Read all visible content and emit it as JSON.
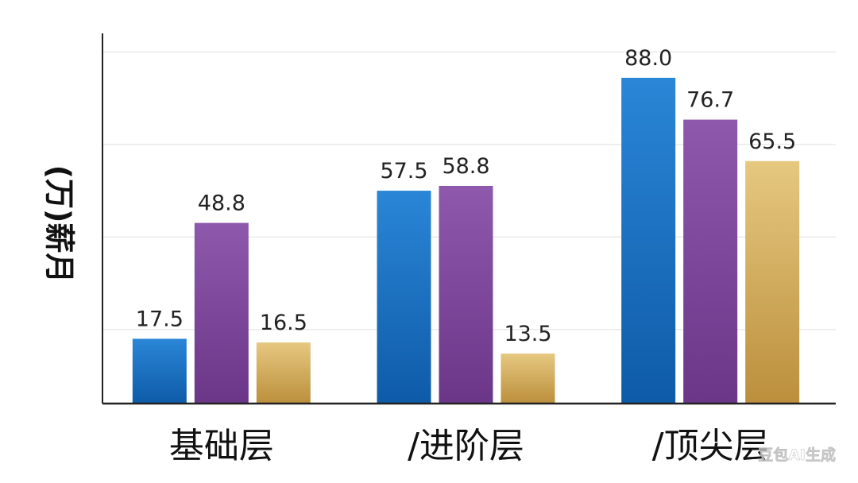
{
  "chart_data": {
    "type": "bar",
    "title": "",
    "xlabel": "",
    "ylabel": "(万)薪月",
    "ylim": [
      0,
      100
    ],
    "grid": true,
    "legend": "none",
    "categories": [
      "基础层",
      "/进阶层",
      "/顶尖层"
    ],
    "series": [
      {
        "values": [
          17.5,
          57.5,
          88.0
        ],
        "labels": [
          "17.5",
          "57.5",
          "88.0"
        ],
        "color": "#1f76c4"
      },
      {
        "values": [
          48.8,
          58.8,
          76.7
        ],
        "labels": [
          "48.8",
          "58.8",
          "76.7"
        ],
        "color": "#7f47a0"
      },
      {
        "values": [
          16.5,
          13.5,
          65.5
        ],
        "labels": [
          "16.5",
          "13.5",
          "65.5"
        ],
        "color": "#d7b362"
      }
    ]
  },
  "watermark": {
    "text": "豆包AI生成"
  }
}
